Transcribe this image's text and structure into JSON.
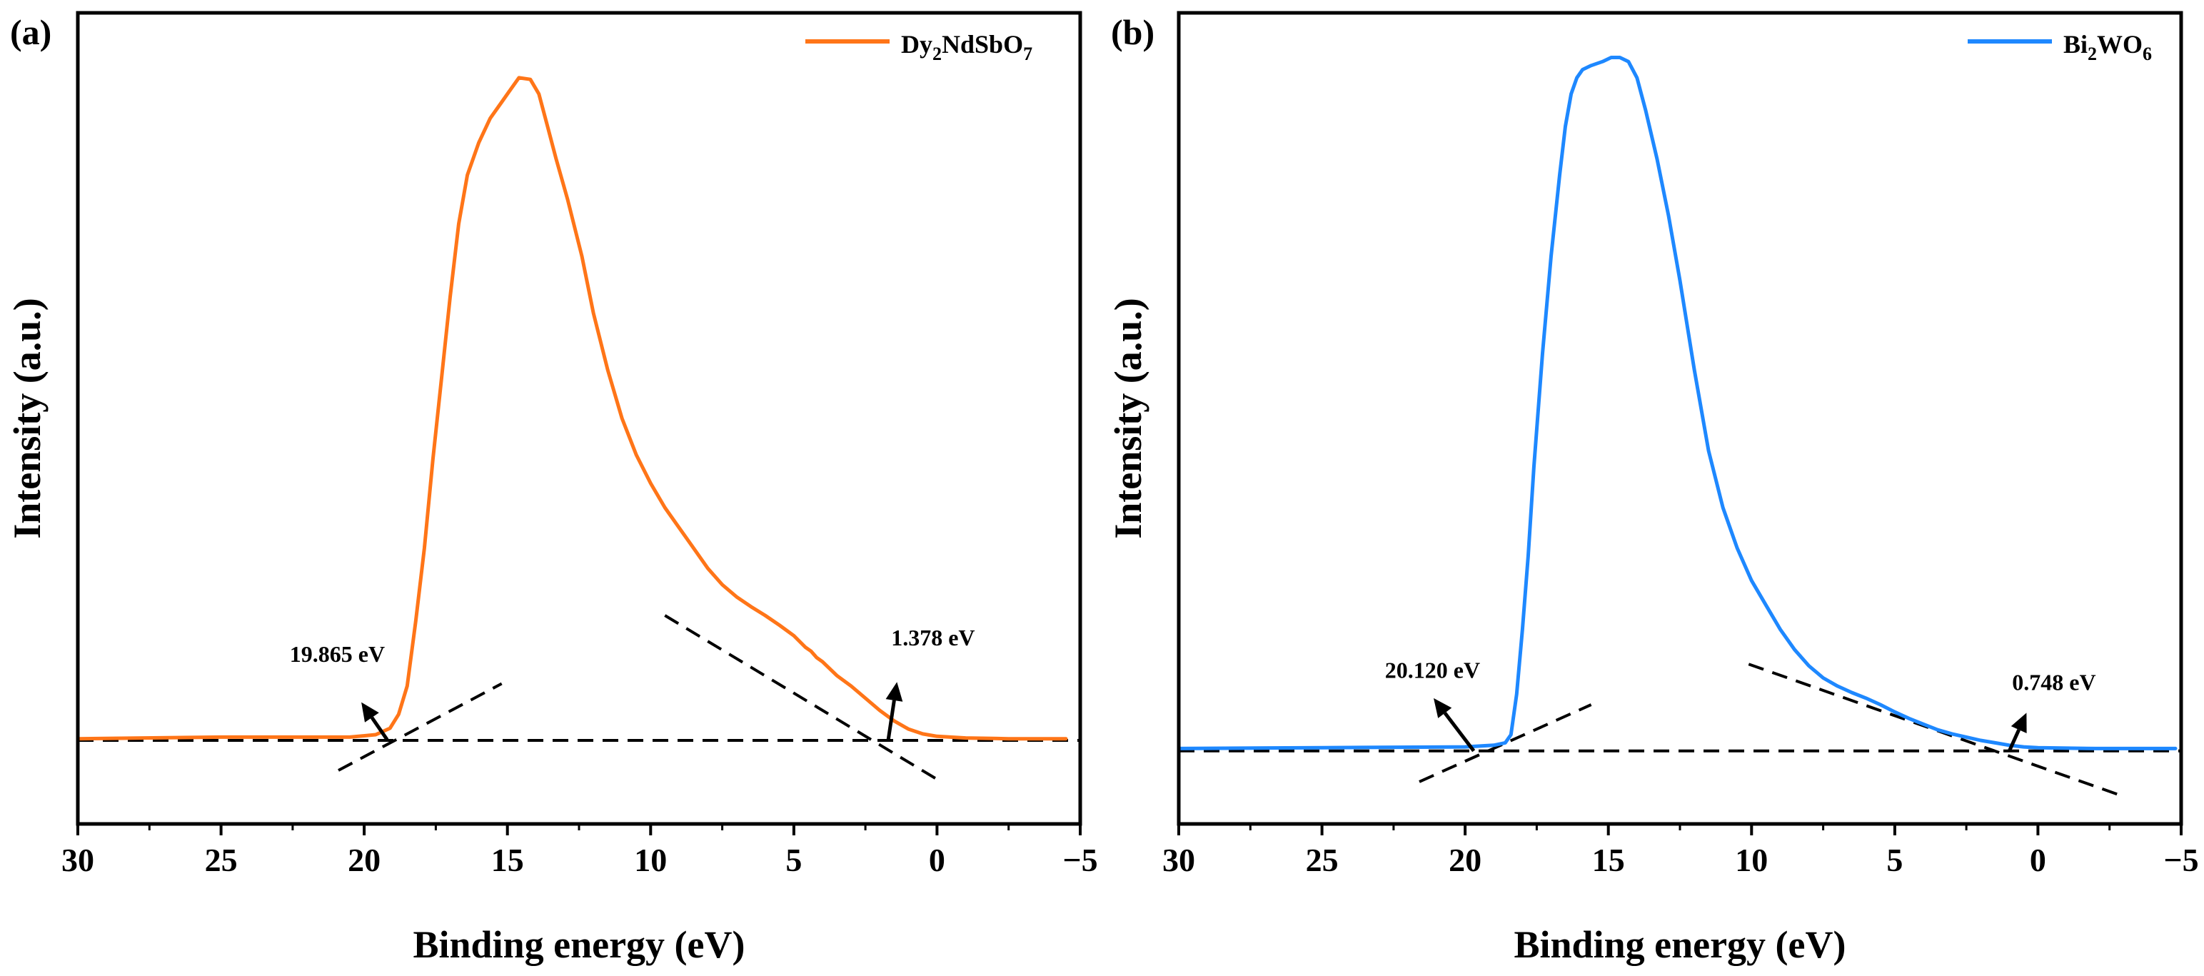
{
  "chart_data": [
    {
      "panel": "(a)",
      "type": "line",
      "title": "",
      "xlabel": "Binding energy (eV)",
      "ylabel": "Intensity (a.u.)",
      "xlim": [
        30,
        -5
      ],
      "ylim": [
        0,
        1
      ],
      "x_ticks": [
        30,
        25,
        20,
        15,
        10,
        5,
        0,
        -5
      ],
      "x_tick_labels": [
        "30",
        "25",
        "20",
        "15",
        "10",
        "5",
        "0",
        "−5"
      ],
      "color": "#ff7518",
      "legend": {
        "main": "Dy",
        "sub1": "2",
        "mid": "NdSbO",
        "sub2": "7",
        "position": "top-right"
      },
      "series": [
        {
          "name": "Dy2NdSbO7",
          "points": [
            [
              30,
              0.105
            ],
            [
              25,
              0.107
            ],
            [
              20.5,
              0.107
            ],
            [
              19.6,
              0.11
            ],
            [
              19.1,
              0.118
            ],
            [
              18.8,
              0.135
            ],
            [
              18.5,
              0.17
            ],
            [
              18.2,
              0.25
            ],
            [
              17.9,
              0.34
            ],
            [
              17.6,
              0.45
            ],
            [
              17.3,
              0.55
            ],
            [
              17.0,
              0.65
            ],
            [
              16.7,
              0.74
            ],
            [
              16.4,
              0.8
            ],
            [
              16.0,
              0.84
            ],
            [
              15.6,
              0.87
            ],
            [
              15.2,
              0.89
            ],
            [
              14.9,
              0.905
            ],
            [
              14.6,
              0.92
            ],
            [
              14.2,
              0.918
            ],
            [
              13.9,
              0.9
            ],
            [
              13.6,
              0.86
            ],
            [
              13.3,
              0.82
            ],
            [
              12.9,
              0.77
            ],
            [
              12.4,
              0.7
            ],
            [
              12.0,
              0.63
            ],
            [
              11.5,
              0.56
            ],
            [
              11.0,
              0.5
            ],
            [
              10.5,
              0.455
            ],
            [
              10.0,
              0.42
            ],
            [
              9.5,
              0.39
            ],
            [
              9.0,
              0.365
            ],
            [
              8.5,
              0.34
            ],
            [
              8.0,
              0.315
            ],
            [
              7.5,
              0.295
            ],
            [
              7.0,
              0.28
            ],
            [
              6.5,
              0.268
            ],
            [
              6.0,
              0.257
            ],
            [
              5.5,
              0.245
            ],
            [
              5.0,
              0.232
            ],
            [
              4.6,
              0.218
            ],
            [
              4.4,
              0.213
            ],
            [
              4.2,
              0.205
            ],
            [
              4.0,
              0.2
            ],
            [
              3.5,
              0.183
            ],
            [
              3.0,
              0.17
            ],
            [
              2.5,
              0.155
            ],
            [
              2.0,
              0.14
            ],
            [
              1.5,
              0.127
            ],
            [
              1.0,
              0.117
            ],
            [
              0.5,
              0.111
            ],
            [
              0.0,
              0.108
            ],
            [
              -1.0,
              0.106
            ],
            [
              -2.5,
              0.105
            ],
            [
              -4.0,
              0.105
            ],
            [
              -4.5,
              0.105
            ]
          ]
        }
      ],
      "guides": [
        {
          "name": "baseline",
          "points": [
            [
              30,
              0.103
            ],
            [
              -5,
              0.103
            ]
          ]
        },
        {
          "name": "left-tangent",
          "points": [
            [
              20.9,
              0.066
            ],
            [
              15.2,
              0.173
            ]
          ]
        },
        {
          "name": "right-tangent",
          "points": [
            [
              9.5,
              0.257
            ],
            [
              0.0,
              0.055
            ]
          ]
        }
      ],
      "annotations": [
        {
          "text": "19.865 eV",
          "label_at": [
            22.6,
            0.2
          ],
          "arrow_from": [
            19.2,
            0.104
          ],
          "arrow_to": [
            20.1,
            0.15
          ]
        },
        {
          "text": "1.378 eV",
          "label_at": [
            1.6,
            0.22
          ],
          "arrow_from": [
            1.7,
            0.104
          ],
          "arrow_to": [
            1.4,
            0.175
          ]
        }
      ]
    },
    {
      "panel": "(b)",
      "type": "line",
      "title": "",
      "xlabel": "Binding energy (eV)",
      "ylabel": "Intensity (a.u.)",
      "xlim": [
        30,
        -5
      ],
      "ylim": [
        0,
        1
      ],
      "x_ticks": [
        30,
        25,
        20,
        15,
        10,
        5,
        0,
        -5
      ],
      "x_tick_labels": [
        "30",
        "25",
        "20",
        "15",
        "10",
        "5",
        "0",
        "−5"
      ],
      "color": "#1e88ff",
      "legend": {
        "main": "Bi",
        "sub1": "2",
        "mid": "WO",
        "sub2": "6",
        "position": "top-right"
      },
      "series": [
        {
          "name": "Bi2WO6",
          "points": [
            [
              30,
              0.093
            ],
            [
              25,
              0.094
            ],
            [
              20.0,
              0.095
            ],
            [
              19.0,
              0.097
            ],
            [
              18.6,
              0.1
            ],
            [
              18.4,
              0.11
            ],
            [
              18.2,
              0.16
            ],
            [
              18.0,
              0.24
            ],
            [
              17.8,
              0.33
            ],
            [
              17.6,
              0.44
            ],
            [
              17.3,
              0.58
            ],
            [
              17.0,
              0.7
            ],
            [
              16.7,
              0.8
            ],
            [
              16.5,
              0.86
            ],
            [
              16.3,
              0.9
            ],
            [
              16.1,
              0.92
            ],
            [
              15.9,
              0.93
            ],
            [
              15.6,
              0.935
            ],
            [
              15.2,
              0.94
            ],
            [
              14.9,
              0.945
            ],
            [
              14.6,
              0.945
            ],
            [
              14.3,
              0.94
            ],
            [
              14.0,
              0.92
            ],
            [
              13.7,
              0.88
            ],
            [
              13.3,
              0.82
            ],
            [
              12.9,
              0.75
            ],
            [
              12.5,
              0.67
            ],
            [
              12.0,
              0.56
            ],
            [
              11.5,
              0.46
            ],
            [
              11.0,
              0.39
            ],
            [
              10.5,
              0.34
            ],
            [
              10.0,
              0.3
            ],
            [
              9.5,
              0.27
            ],
            [
              9.0,
              0.24
            ],
            [
              8.5,
              0.215
            ],
            [
              8.0,
              0.195
            ],
            [
              7.5,
              0.18
            ],
            [
              7.0,
              0.17
            ],
            [
              6.5,
              0.162
            ],
            [
              6.0,
              0.155
            ],
            [
              5.5,
              0.147
            ],
            [
              5.0,
              0.138
            ],
            [
              4.5,
              0.13
            ],
            [
              4.0,
              0.123
            ],
            [
              3.5,
              0.116
            ],
            [
              3.0,
              0.111
            ],
            [
              2.5,
              0.107
            ],
            [
              2.0,
              0.103
            ],
            [
              1.5,
              0.1
            ],
            [
              1.0,
              0.097
            ],
            [
              0.5,
              0.095
            ],
            [
              0.0,
              0.094
            ],
            [
              -2.0,
              0.093
            ],
            [
              -4.0,
              0.093
            ],
            [
              -4.8,
              0.093
            ]
          ]
        }
      ],
      "guides": [
        {
          "name": "baseline",
          "points": [
            [
              30,
              0.09
            ],
            [
              -5,
              0.09
            ]
          ]
        },
        {
          "name": "left-tangent",
          "points": [
            [
              21.6,
              0.052
            ],
            [
              15.6,
              0.147
            ]
          ]
        },
        {
          "name": "right-tangent",
          "points": [
            [
              10.1,
              0.197
            ],
            [
              -2.9,
              0.035
            ]
          ]
        }
      ],
      "annotations": [
        {
          "text": "20.120 eV",
          "label_at": [
            22.8,
            0.18
          ],
          "arrow_from": [
            19.7,
            0.09
          ],
          "arrow_to": [
            21.1,
            0.155
          ]
        },
        {
          "text": "0.748 eV",
          "label_at": [
            0.9,
            0.165
          ],
          "arrow_from": [
            1.0,
            0.09
          ],
          "arrow_to": [
            0.4,
            0.137
          ]
        }
      ]
    }
  ]
}
